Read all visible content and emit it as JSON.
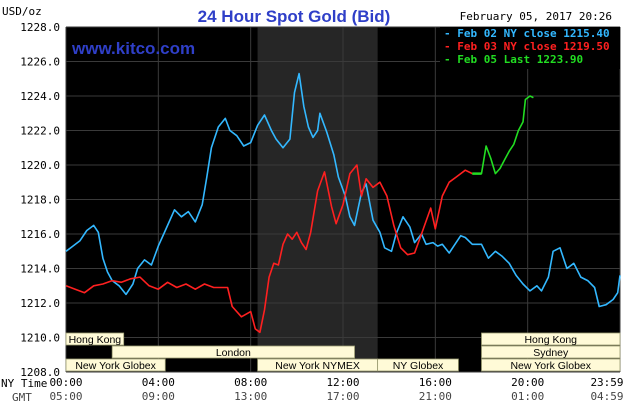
{
  "header": {
    "title": "24 Hour Spot Gold (Bid)",
    "website": "www.kitco.com",
    "date_time": "February 05, 2017 20:26",
    "y_unit": "USD/oz"
  },
  "legend": [
    {
      "label": "Feb 02 NY close 1215.40",
      "color": "#33b8ff"
    },
    {
      "label": "Feb 03 NY close 1219.50",
      "color": "#ff2020"
    },
    {
      "label": "Feb 05 Last 1223.90",
      "color": "#22dd22"
    }
  ],
  "time_axis": {
    "ny_label": "NY Time",
    "gmt_label": "GMT",
    "ny_ticks": [
      "00:00",
      "04:00",
      "08:00",
      "12:00",
      "16:00",
      "20:00",
      "23:59"
    ],
    "gmt_ticks": [
      "05:00",
      "09:00",
      "13:00",
      "17:00",
      "21:00",
      "01:00",
      "04:59"
    ]
  },
  "markets": [
    {
      "label": "Hong Kong",
      "start_hour": 0,
      "end_hour": 2.5,
      "row": 0
    },
    {
      "label": "Hong Kong",
      "start_hour": 18,
      "end_hour": 24,
      "row": 0
    },
    {
      "label": "London",
      "start_hour": 2,
      "end_hour": 12.5,
      "row": 1
    },
    {
      "label": "Sydney",
      "start_hour": 18,
      "end_hour": 24,
      "row": 1
    },
    {
      "label": "New York Globex",
      "start_hour": 0,
      "end_hour": 4.3,
      "row": 2
    },
    {
      "label": "New York NYMEX",
      "start_hour": 8.3,
      "end_hour": 13.5,
      "row": 2
    },
    {
      "label": "NY Globex",
      "start_hour": 13.5,
      "end_hour": 17,
      "row": 2
    },
    {
      "label": "New York Globex",
      "start_hour": 18,
      "end_hour": 24,
      "row": 2
    }
  ],
  "chart_data": {
    "type": "line",
    "title": "24 Hour Spot Gold (Bid)",
    "xlabel": "NY Time",
    "ylabel": "USD/oz",
    "x_unit": "hours (NY time)",
    "xlim": [
      0,
      24
    ],
    "ylim": [
      1208,
      1228
    ],
    "y_ticks": [
      1208.0,
      1210.0,
      1212.0,
      1214.0,
      1216.0,
      1218.0,
      1220.0,
      1222.0,
      1224.0,
      1226.0,
      1228.0
    ],
    "grid": true,
    "background": "#000000",
    "session_shading_hours": [
      8.3,
      13.5
    ],
    "legend_position": "top-right",
    "series": [
      {
        "name": "Feb 02",
        "color": "#33b8ff",
        "points": [
          [
            0,
            1215.0
          ],
          [
            0.3,
            1215.3
          ],
          [
            0.6,
            1215.6
          ],
          [
            0.9,
            1216.2
          ],
          [
            1.2,
            1216.5
          ],
          [
            1.4,
            1216.1
          ],
          [
            1.6,
            1214.6
          ],
          [
            1.8,
            1213.8
          ],
          [
            2.0,
            1213.3
          ],
          [
            2.3,
            1213.0
          ],
          [
            2.6,
            1212.5
          ],
          [
            2.9,
            1213.1
          ],
          [
            3.1,
            1214.0
          ],
          [
            3.4,
            1214.5
          ],
          [
            3.7,
            1214.2
          ],
          [
            4.0,
            1215.3
          ],
          [
            4.3,
            1216.2
          ],
          [
            4.7,
            1217.4
          ],
          [
            5.0,
            1217.0
          ],
          [
            5.3,
            1217.3
          ],
          [
            5.6,
            1216.7
          ],
          [
            5.9,
            1217.7
          ],
          [
            6.1,
            1219.3
          ],
          [
            6.3,
            1221.0
          ],
          [
            6.6,
            1222.2
          ],
          [
            6.9,
            1222.7
          ],
          [
            7.1,
            1222.0
          ],
          [
            7.4,
            1221.7
          ],
          [
            7.7,
            1221.1
          ],
          [
            8.0,
            1221.3
          ],
          [
            8.3,
            1222.3
          ],
          [
            8.6,
            1222.9
          ],
          [
            8.9,
            1222.0
          ],
          [
            9.1,
            1221.5
          ],
          [
            9.4,
            1221.0
          ],
          [
            9.7,
            1221.5
          ],
          [
            9.9,
            1224.2
          ],
          [
            10.1,
            1225.3
          ],
          [
            10.3,
            1223.4
          ],
          [
            10.5,
            1222.2
          ],
          [
            10.7,
            1221.6
          ],
          [
            10.9,
            1222.0
          ],
          [
            11.0,
            1223.0
          ],
          [
            11.3,
            1221.9
          ],
          [
            11.6,
            1220.6
          ],
          [
            11.8,
            1219.3
          ],
          [
            12.1,
            1218.2
          ],
          [
            12.3,
            1217.0
          ],
          [
            12.5,
            1216.5
          ],
          [
            12.8,
            1218.4
          ],
          [
            13.0,
            1218.9
          ],
          [
            13.3,
            1216.8
          ],
          [
            13.6,
            1216.1
          ],
          [
            13.8,
            1215.2
          ],
          [
            14.1,
            1215.0
          ],
          [
            14.3,
            1216.0
          ],
          [
            14.6,
            1217.0
          ],
          [
            14.9,
            1216.4
          ],
          [
            15.1,
            1215.5
          ],
          [
            15.4,
            1216.0
          ],
          [
            15.6,
            1215.4
          ],
          [
            15.9,
            1215.5
          ],
          [
            16.1,
            1215.3
          ],
          [
            16.3,
            1215.4
          ],
          [
            16.6,
            1214.9
          ],
          [
            16.8,
            1215.3
          ],
          [
            17.1,
            1215.9
          ],
          [
            17.3,
            1215.8
          ],
          [
            17.6,
            1215.4
          ],
          [
            18.0,
            1215.4
          ],
          [
            18.3,
            1214.6
          ],
          [
            18.6,
            1215.0
          ],
          [
            18.9,
            1214.7
          ],
          [
            19.2,
            1214.3
          ],
          [
            19.5,
            1213.6
          ],
          [
            19.8,
            1213.1
          ],
          [
            20.1,
            1212.7
          ],
          [
            20.4,
            1213.0
          ],
          [
            20.6,
            1212.7
          ],
          [
            20.9,
            1213.5
          ],
          [
            21.1,
            1215.0
          ],
          [
            21.4,
            1215.2
          ],
          [
            21.7,
            1214.0
          ],
          [
            22.0,
            1214.3
          ],
          [
            22.3,
            1213.5
          ],
          [
            22.6,
            1213.3
          ],
          [
            22.9,
            1212.9
          ],
          [
            23.1,
            1211.8
          ],
          [
            23.4,
            1211.9
          ],
          [
            23.7,
            1212.2
          ],
          [
            23.9,
            1212.6
          ],
          [
            24.0,
            1213.6
          ]
        ]
      },
      {
        "name": "Feb 03",
        "color": "#ff2020",
        "points": [
          [
            0,
            1213.0
          ],
          [
            0.4,
            1212.8
          ],
          [
            0.8,
            1212.6
          ],
          [
            1.2,
            1213.0
          ],
          [
            1.6,
            1213.1
          ],
          [
            2.0,
            1213.3
          ],
          [
            2.4,
            1213.2
          ],
          [
            2.8,
            1213.4
          ],
          [
            3.2,
            1213.5
          ],
          [
            3.6,
            1213.0
          ],
          [
            4.0,
            1212.8
          ],
          [
            4.4,
            1213.2
          ],
          [
            4.8,
            1212.9
          ],
          [
            5.2,
            1213.1
          ],
          [
            5.6,
            1212.8
          ],
          [
            6.0,
            1213.1
          ],
          [
            6.4,
            1212.9
          ],
          [
            6.8,
            1212.9
          ],
          [
            7.0,
            1212.9
          ],
          [
            7.2,
            1211.8
          ],
          [
            7.6,
            1211.2
          ],
          [
            8.0,
            1211.5
          ],
          [
            8.2,
            1210.5
          ],
          [
            8.4,
            1210.3
          ],
          [
            8.6,
            1211.6
          ],
          [
            8.8,
            1213.5
          ],
          [
            9.0,
            1214.3
          ],
          [
            9.2,
            1214.2
          ],
          [
            9.4,
            1215.4
          ],
          [
            9.6,
            1216.0
          ],
          [
            9.8,
            1215.7
          ],
          [
            10.0,
            1216.1
          ],
          [
            10.2,
            1215.5
          ],
          [
            10.4,
            1215.1
          ],
          [
            10.6,
            1216.1
          ],
          [
            10.9,
            1218.5
          ],
          [
            11.2,
            1219.6
          ],
          [
            11.5,
            1217.6
          ],
          [
            11.7,
            1216.6
          ],
          [
            12.0,
            1217.7
          ],
          [
            12.3,
            1219.5
          ],
          [
            12.6,
            1220.0
          ],
          [
            12.8,
            1218.2
          ],
          [
            13.0,
            1219.2
          ],
          [
            13.3,
            1218.7
          ],
          [
            13.6,
            1219.0
          ],
          [
            13.9,
            1218.2
          ],
          [
            14.2,
            1216.5
          ],
          [
            14.5,
            1215.2
          ],
          [
            14.8,
            1214.8
          ],
          [
            15.1,
            1214.9
          ],
          [
            15.4,
            1216.0
          ],
          [
            15.8,
            1217.5
          ],
          [
            16.0,
            1216.3
          ],
          [
            16.3,
            1218.2
          ],
          [
            16.6,
            1219.0
          ],
          [
            16.9,
            1219.3
          ],
          [
            17.3,
            1219.7
          ],
          [
            17.6,
            1219.5
          ]
        ]
      },
      {
        "name": "Feb 05",
        "color": "#22dd22",
        "points": [
          [
            17.6,
            1219.5
          ],
          [
            18.0,
            1219.5
          ],
          [
            18.2,
            1221.1
          ],
          [
            18.4,
            1220.4
          ],
          [
            18.6,
            1219.5
          ],
          [
            18.8,
            1219.8
          ],
          [
            19.0,
            1220.3
          ],
          [
            19.2,
            1220.8
          ],
          [
            19.4,
            1221.2
          ],
          [
            19.6,
            1222.0
          ],
          [
            19.8,
            1222.5
          ],
          [
            19.9,
            1223.8
          ],
          [
            20.1,
            1224.0
          ],
          [
            20.25,
            1223.9
          ]
        ]
      }
    ]
  }
}
